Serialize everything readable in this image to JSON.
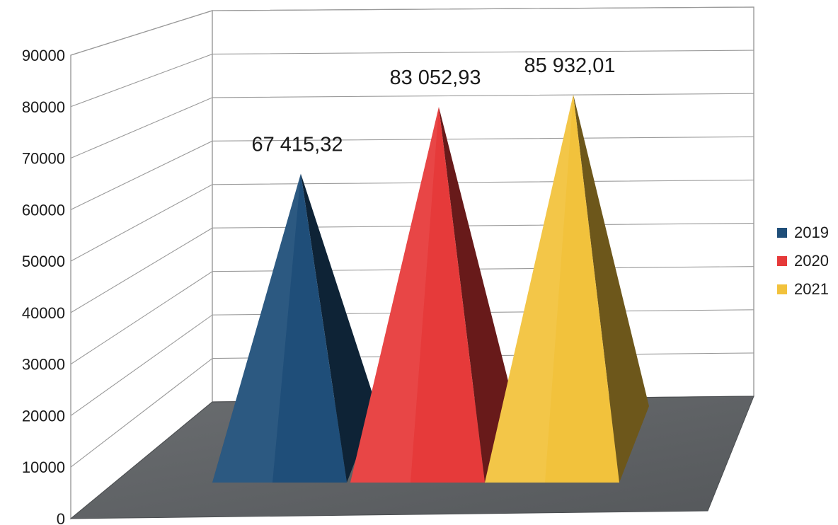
{
  "chart_data": {
    "type": "bar",
    "shape": "pyramid-3d",
    "categories": [
      "2019",
      "2020",
      "2021"
    ],
    "values": [
      67415.32,
      83052.93,
      85932.01
    ],
    "data_labels": [
      "67 415,32",
      "83 052,93",
      "85 932,01"
    ],
    "colors": [
      "#1f4e79",
      "#e63a3a",
      "#f2c23c"
    ],
    "title": "",
    "xlabel": "",
    "ylabel": "",
    "ylim": [
      0,
      90000
    ],
    "yticks": [
      "0",
      "10000",
      "20000",
      "30000",
      "40000",
      "50000",
      "60000",
      "70000",
      "80000",
      "90000"
    ],
    "grid": true,
    "legend": {
      "position": "right",
      "entries": [
        "2019",
        "2020",
        "2021"
      ]
    }
  }
}
